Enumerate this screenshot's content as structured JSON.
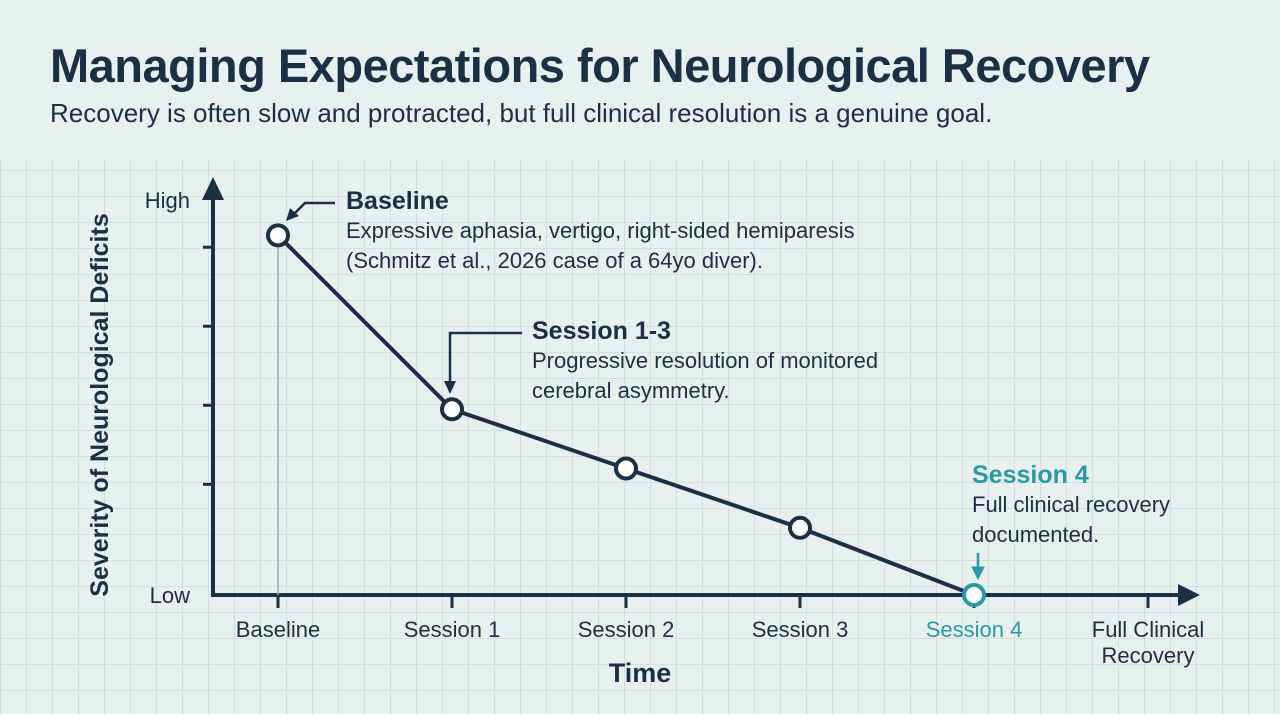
{
  "chart_data": {
    "type": "line",
    "title": "Managing Expectations for Neurological Recovery",
    "subtitle": "Recovery is often slow and protracted, but full clinical resolution is a genuine goal.",
    "x_label": "Time",
    "y_label": "Severity of Neurological Deficits",
    "categories": [
      "Baseline",
      "Session 1",
      "Session 2",
      "Session 3",
      "Session 4",
      "Full Clinical Recovery"
    ],
    "series": [
      {
        "name": "Severity",
        "color": "#1b2f45",
        "values": [
          91,
          47,
          32,
          17,
          0,
          null
        ]
      }
    ],
    "ylim": [
      0,
      105
    ],
    "yticks": [
      {
        "value": 0,
        "label": "Low"
      },
      {
        "value": 28,
        "label": null
      },
      {
        "value": 48,
        "label": null
      },
      {
        "value": 68,
        "label": null
      },
      {
        "value": 88,
        "label": null
      },
      {
        "value": 100,
        "label": "High"
      }
    ],
    "highlight_color": "#2a9aa8",
    "highlight_index": 4,
    "annotations": [
      {
        "title": "Baseline",
        "text": "Expressive aphasia, vertigo, right-sided hemiparesis (Schmitz et al., 2026 case of a 64yo diver)."
      },
      {
        "title": "Session 1-3",
        "text": "Progressive resolution of monitored cerebral asymmetry."
      },
      {
        "title": "Session 4",
        "text": "Full clinical recovery documented."
      }
    ]
  }
}
